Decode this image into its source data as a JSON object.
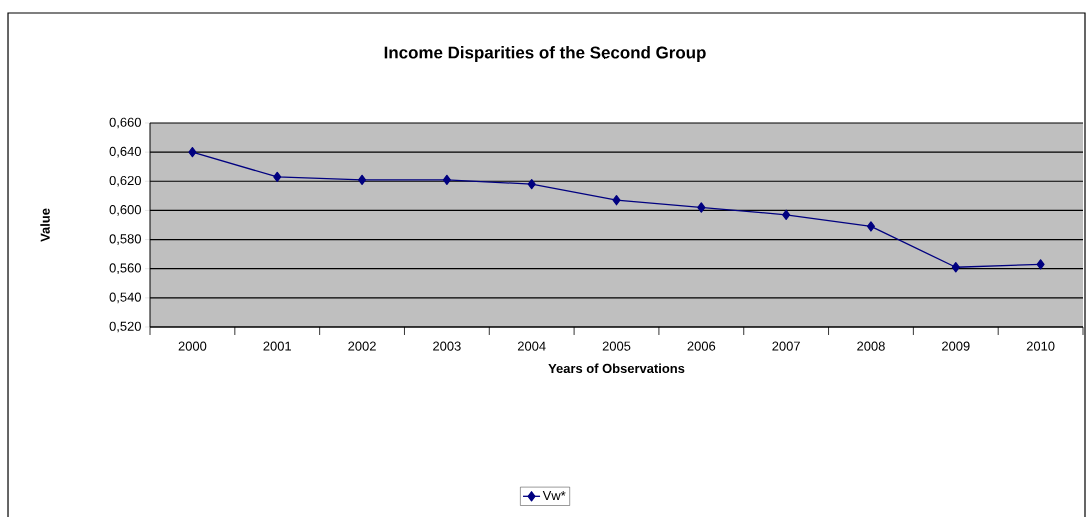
{
  "chart_data": {
    "type": "line",
    "title": "Income Disparities of the Second Group",
    "xlabel": "Years of Observations",
    "ylabel": "Value",
    "categories": [
      "2000",
      "2001",
      "2002",
      "2003",
      "2004",
      "2005",
      "2006",
      "2007",
      "2008",
      "2009",
      "2010"
    ],
    "series": [
      {
        "name": "Vw*",
        "color": "#000080",
        "values": [
          0.64,
          0.623,
          0.621,
          0.621,
          0.618,
          0.607,
          0.602,
          0.597,
          0.589,
          0.561,
          0.563
        ]
      }
    ],
    "ylim": [
      0.52,
      0.66
    ],
    "yticks": [
      {
        "value": 0.52,
        "label": "0,520"
      },
      {
        "value": 0.54,
        "label": "0,540"
      },
      {
        "value": 0.56,
        "label": "0,560"
      },
      {
        "value": 0.58,
        "label": "0,580"
      },
      {
        "value": 0.6,
        "label": "0,600"
      },
      {
        "value": 0.62,
        "label": "0,620"
      },
      {
        "value": 0.64,
        "label": "0,640"
      },
      {
        "value": 0.66,
        "label": "0,660"
      }
    ],
    "grid": "y",
    "legend": "bottom",
    "marker": "diamond",
    "line_style": "solid"
  }
}
